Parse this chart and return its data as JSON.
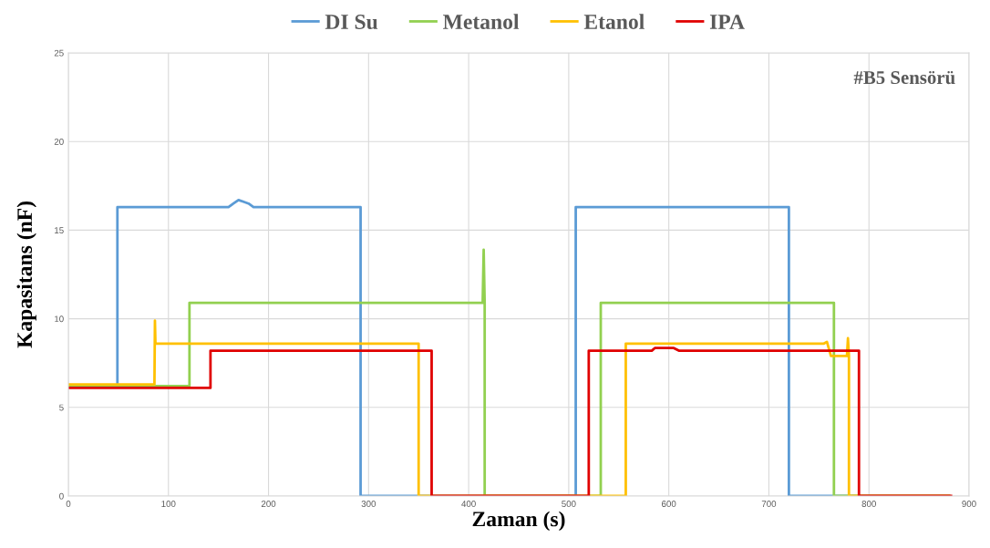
{
  "chart_data": {
    "type": "line",
    "xlabel": "Zaman (s)",
    "ylabel": "Kapasitans (nF)",
    "annotations": [
      "#B5 Sensörü"
    ],
    "xlim": [
      0,
      900
    ],
    "ylim": [
      0,
      25
    ],
    "xticks": [
      0,
      100,
      200,
      300,
      400,
      500,
      600,
      700,
      800,
      900
    ],
    "yticks": [
      0,
      5,
      10,
      15,
      20,
      25
    ],
    "grid": true,
    "legend": "top",
    "marker": "none",
    "line_style": "solid",
    "series": [
      {
        "name": "DI Su",
        "color": "#5b9bd5",
        "x": [
          49,
          49,
          160,
          165,
          170,
          175,
          180,
          185,
          290,
          292,
          292,
          507,
          507,
          720,
          720,
          880
        ],
        "values": [
          6.3,
          16.3,
          16.3,
          16.5,
          16.7,
          16.6,
          16.5,
          16.3,
          16.3,
          16.3,
          0,
          0,
          16.3,
          16.3,
          0,
          0
        ]
      },
      {
        "name": "Metanol",
        "color": "#92d050",
        "x": [
          0,
          121,
          121,
          414,
          415,
          416,
          416,
          532,
          532,
          765,
          765,
          880
        ],
        "values": [
          6.2,
          6.2,
          10.9,
          10.9,
          13.9,
          10.9,
          0,
          0,
          10.9,
          10.9,
          0,
          0
        ]
      },
      {
        "name": "Etanol",
        "color": "#ffc000",
        "x": [
          0,
          86,
          86.5,
          87,
          350,
          350,
          557,
          557,
          755,
          758,
          762,
          778,
          779,
          780,
          780,
          880
        ],
        "values": [
          6.3,
          6.3,
          9.9,
          8.6,
          8.6,
          0,
          0,
          8.6,
          8.6,
          8.7,
          7.9,
          7.9,
          8.9,
          7.9,
          0,
          0
        ]
      },
      {
        "name": "IPA",
        "color": "#e00000",
        "x": [
          0,
          142,
          142,
          363,
          363,
          520,
          520,
          583,
          586,
          605,
          610,
          790,
          790,
          882
        ],
        "values": [
          6.1,
          6.1,
          8.2,
          8.2,
          0,
          0,
          8.2,
          8.2,
          8.35,
          8.35,
          8.2,
          8.2,
          0,
          0
        ]
      }
    ]
  }
}
